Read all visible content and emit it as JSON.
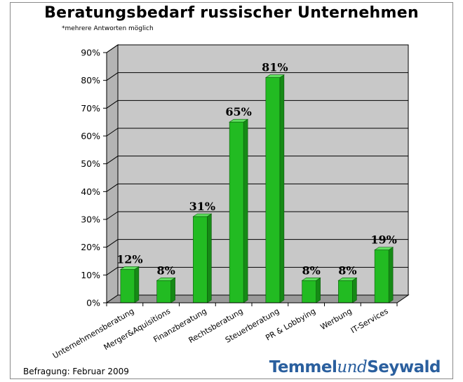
{
  "chart_data": {
    "type": "bar",
    "title": "Beratungsbedarf russischer Unternehmen",
    "subtitle": "*mehrere Antworten möglich",
    "categories": [
      "Unternehmensberatung",
      "Merger&Aquisitions",
      "Finanzberatung",
      "Rechtsberatung",
      "Steuerberatung",
      "PR & Lobbying",
      "Werbung",
      "IT-Services"
    ],
    "values": [
      12,
      8,
      31,
      65,
      81,
      8,
      8,
      19
    ],
    "data_labels": [
      "12%",
      "8%",
      "31%",
      "65%",
      "81%",
      "8%",
      "8%",
      "19%"
    ],
    "y_ticks": [
      "0%",
      "10%",
      "20%",
      "30%",
      "40%",
      "50%",
      "60%",
      "70%",
      "80%",
      "90%"
    ],
    "ylim": [
      0,
      90
    ],
    "grid": true,
    "colors": {
      "bar_front": "#22bb22",
      "bar_side": "#168a16",
      "bar_top": "#5fe05f",
      "plot_wall": "#c8c8c8",
      "plot_floor": "#9a9a9a"
    }
  },
  "footer": {
    "source": "Befragung: Februar 2009"
  },
  "logo": {
    "part1": "Temmel",
    "part2": "und",
    "part3": "Seywald"
  }
}
